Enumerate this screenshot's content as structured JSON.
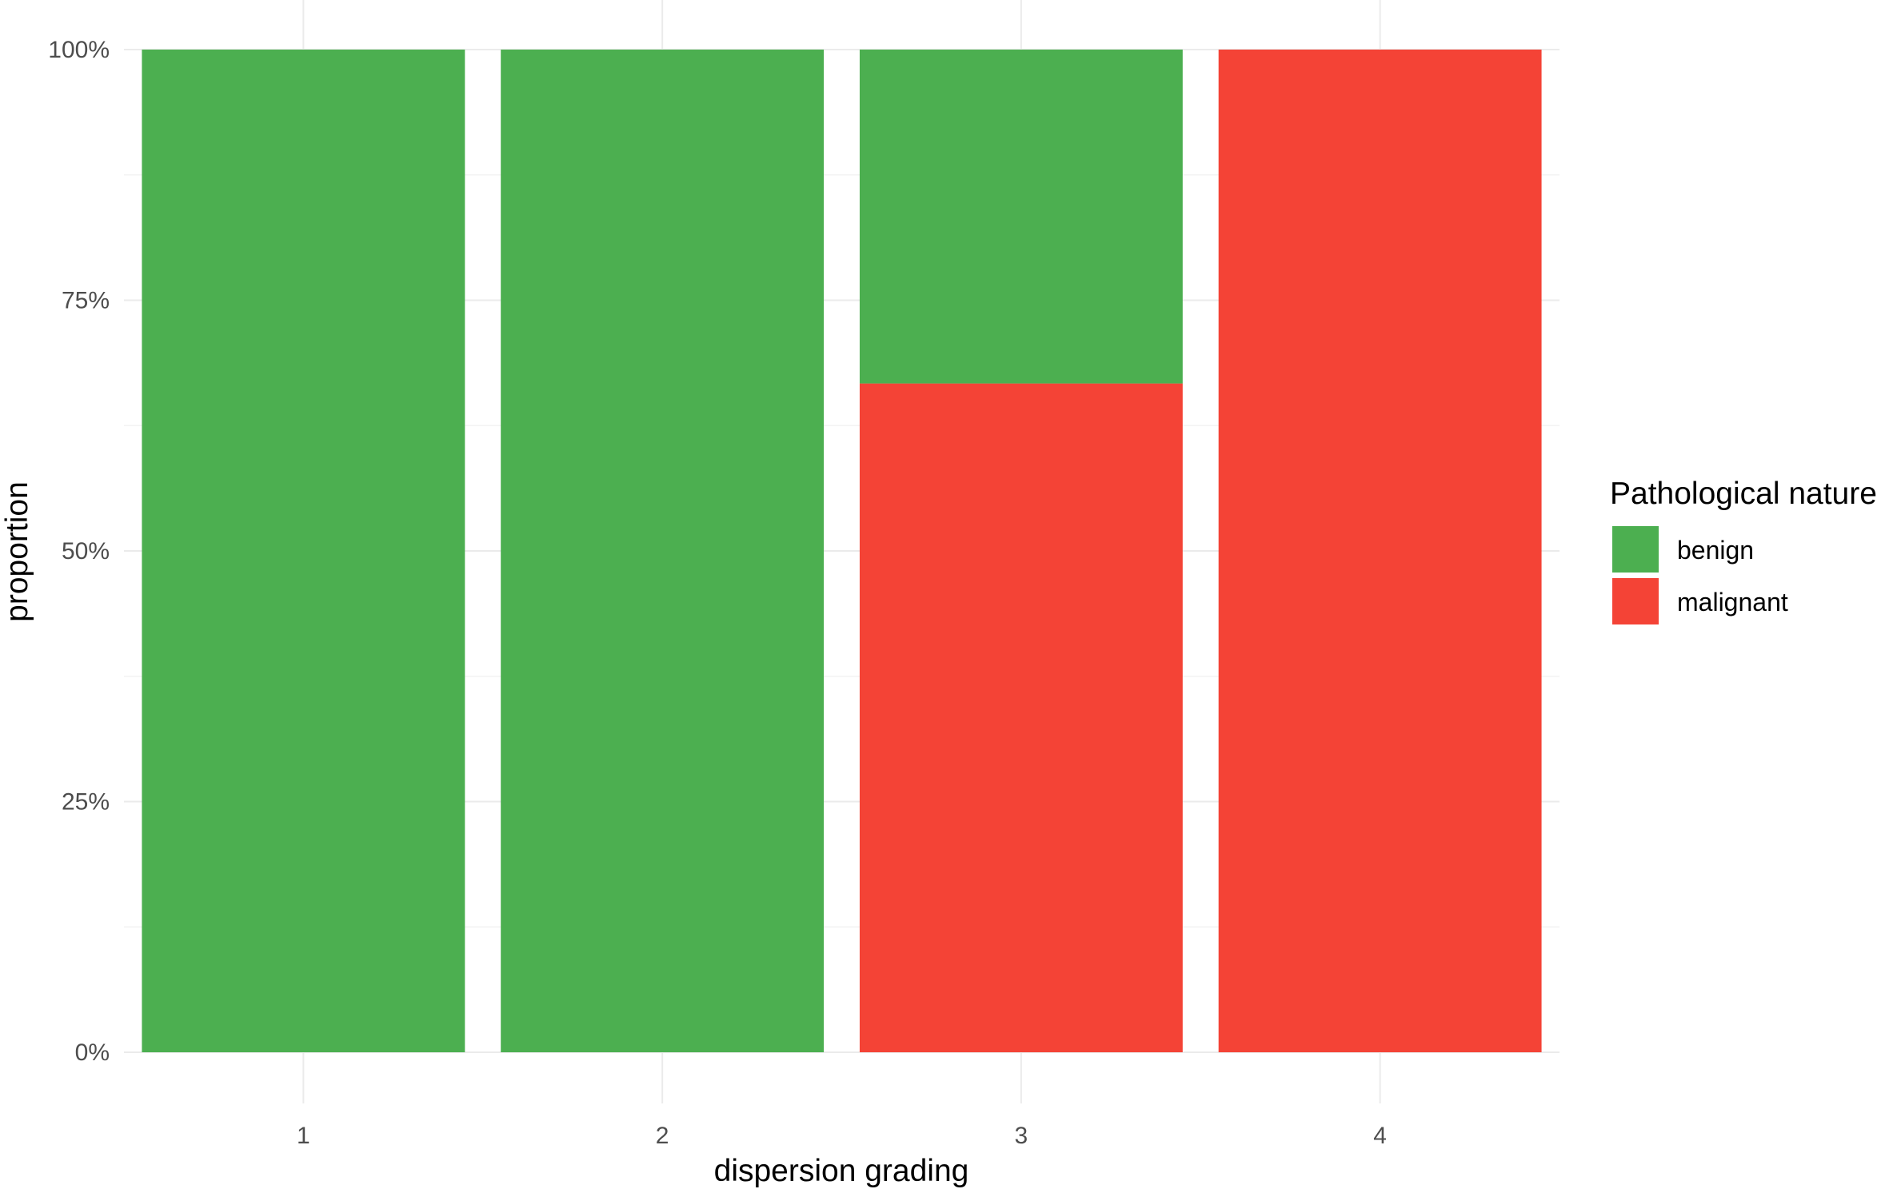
{
  "chart_data": {
    "type": "bar",
    "stacked": true,
    "categories": [
      "1",
      "2",
      "3",
      "4"
    ],
    "series": [
      {
        "name": "benign",
        "color": "#4caf50",
        "values": [
          1.0,
          1.0,
          0.333,
          0.0
        ]
      },
      {
        "name": "malignant",
        "color": "#f44336",
        "values": [
          0.0,
          0.0,
          0.667,
          1.0
        ]
      }
    ],
    "xlabel": "dispersion grading",
    "ylabel": "proportion",
    "ylim": [
      0,
      1
    ],
    "yticks": [
      {
        "value": 0,
        "label": "0%"
      },
      {
        "value": 0.25,
        "label": "25%"
      },
      {
        "value": 0.5,
        "label": "50%"
      },
      {
        "value": 0.75,
        "label": "75%"
      },
      {
        "value": 1,
        "label": "100%"
      }
    ],
    "grid": true,
    "legend": {
      "title": "Pathological nature",
      "placement": "right"
    }
  }
}
